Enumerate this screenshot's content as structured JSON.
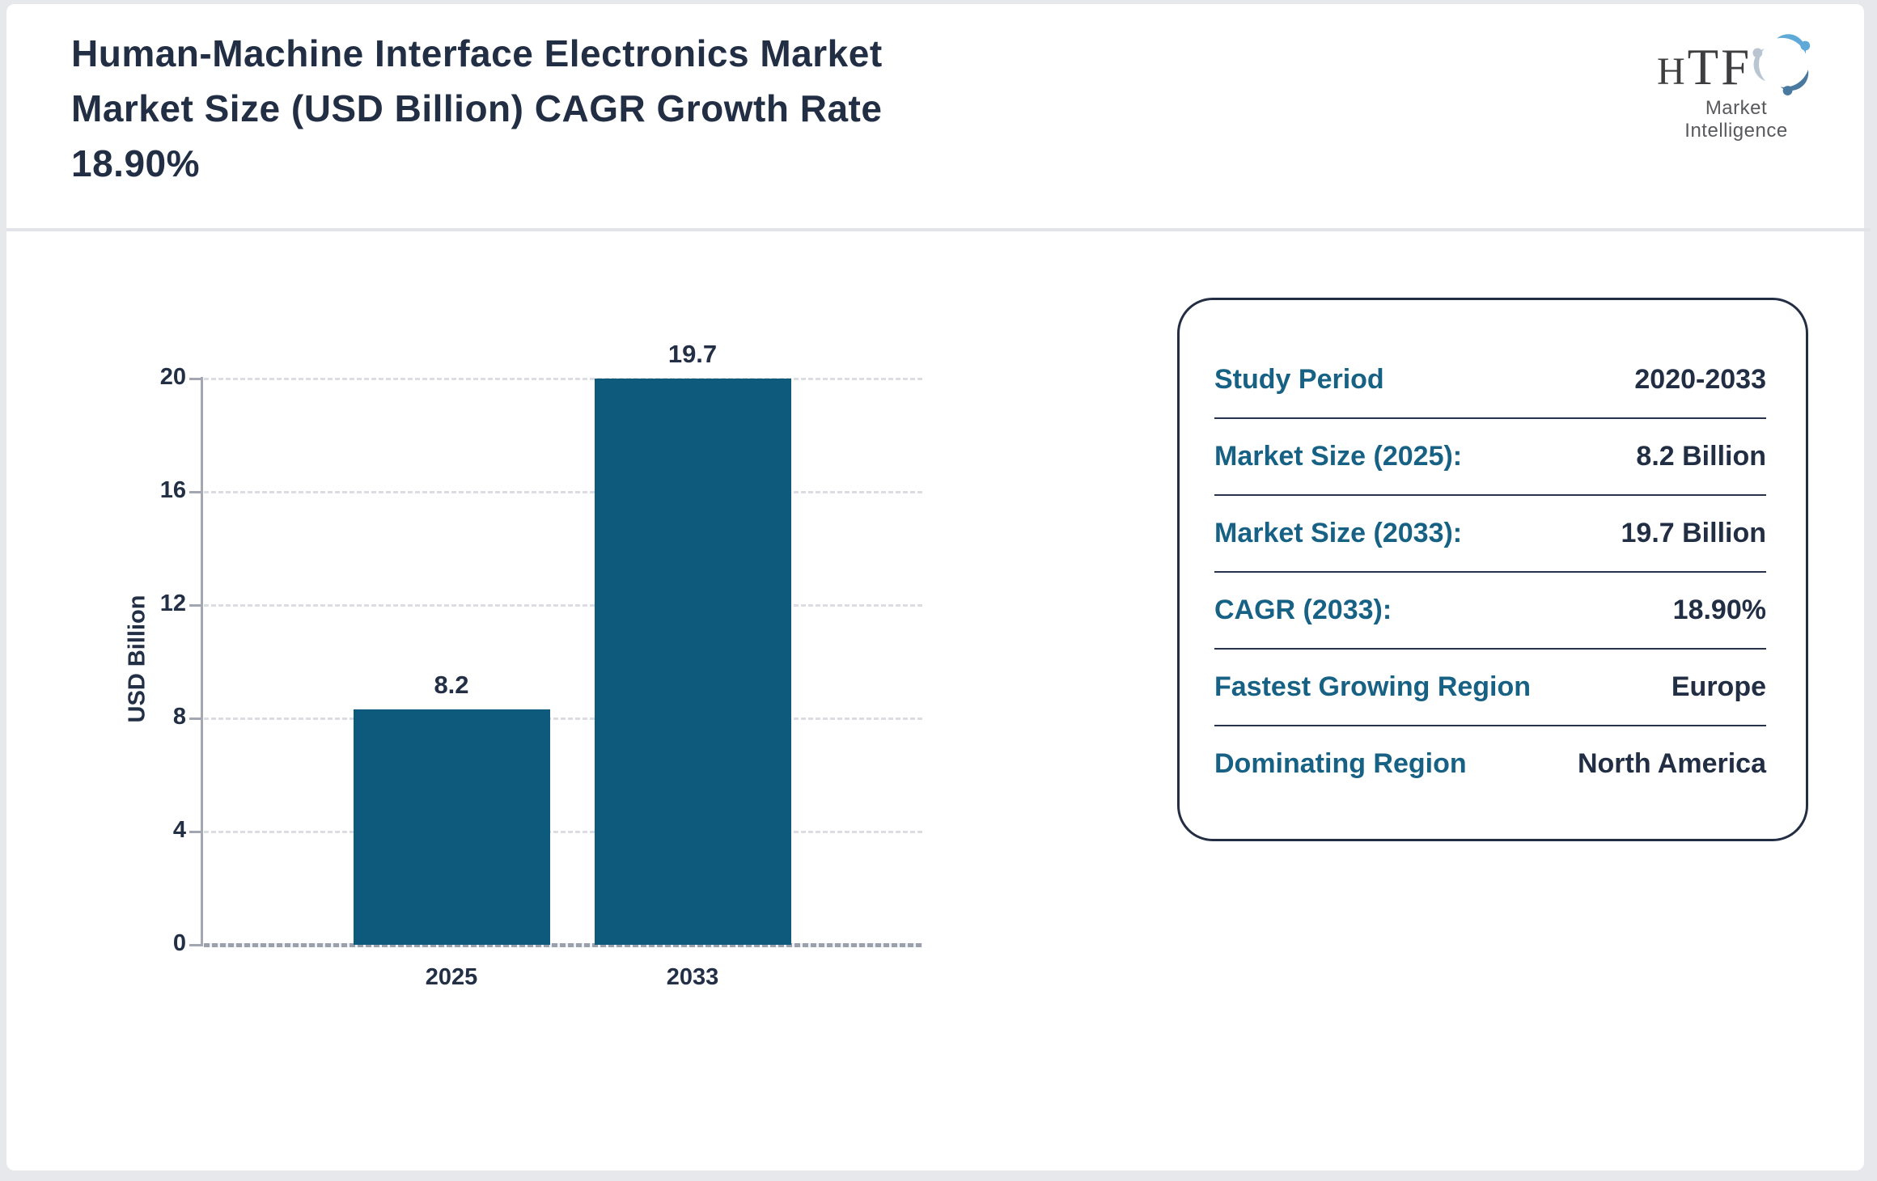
{
  "page": {
    "background_color": "#e7e8ec",
    "card_color": "#ffffff"
  },
  "header": {
    "title_lines": [
      "Human-Machine Interface Electronics Market",
      "Market Size (USD Billion) CAGR Growth Rate",
      "18.90%"
    ],
    "logo": {
      "acronym_h": "H",
      "acronym_tf": "TF",
      "tagline": "Market Intelligence",
      "swirl_colors": [
        "#5ea9d8",
        "#b9c5d1",
        "#49799f"
      ]
    }
  },
  "chart_data": {
    "type": "bar",
    "title": "Human-Machine Interface Electronics Market Market Size (USD Billion) CAGR Growth Rate 18.90%",
    "categories": [
      "2025",
      "2033"
    ],
    "values": [
      8.2,
      19.7
    ],
    "value_labels": [
      "8.2",
      "19.7"
    ],
    "xlabel": "",
    "ylabel": "USD Billion",
    "ylim": [
      0,
      20
    ],
    "yticks": [
      0,
      4,
      8,
      12,
      16,
      20
    ],
    "grid": "horizontal dashed, light gray",
    "legend": "none",
    "bar_color": "#0d5a7c",
    "tick_label_color": "#222f45"
  },
  "panel": {
    "rows": [
      {
        "label": "Study Period",
        "value": "2020-2033"
      },
      {
        "label": "Market Size (2025):",
        "value": "8.2 Billion"
      },
      {
        "label": "Market Size (2033):",
        "value": "19.7 Billion"
      },
      {
        "label": "CAGR (2033):",
        "value": "18.90%"
      },
      {
        "label": "Fastest Growing Region",
        "value": "Europe"
      },
      {
        "label": "Dominating Region",
        "value": "North America"
      }
    ],
    "label_color": "#176284",
    "value_color": "#212e44",
    "border_color": "#232e44"
  }
}
